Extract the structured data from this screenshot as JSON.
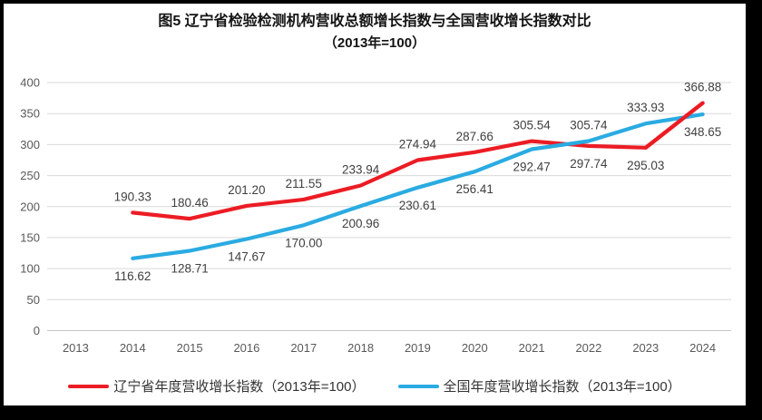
{
  "colors": {
    "grid": "#d9d9d9",
    "axis_line": "#c6c6c6",
    "axis_text": "#595959",
    "data_label": "#404040",
    "frame": "#000000",
    "background": "#ffffff"
  },
  "chart_data": {
    "type": "line",
    "title_line1": "图5  辽宁省检验检测机构营收总额增长指数与全国营收增长指数对比",
    "title_line2": "（2013年=100）",
    "categories": [
      "2013",
      "2014",
      "2015",
      "2016",
      "2017",
      "2018",
      "2019",
      "2020",
      "2021",
      "2022",
      "2023",
      "2024"
    ],
    "yticks": [
      0,
      50,
      100,
      150,
      200,
      250,
      300,
      350,
      400
    ],
    "ylim": [
      0,
      400
    ],
    "grid": true,
    "legend_position": "bottom",
    "series": [
      {
        "name": "辽宁省年度营收增长指数（2013年=100）",
        "color": "#ec1c24",
        "values": [
          null,
          190.33,
          180.46,
          201.2,
          211.55,
          233.94,
          274.94,
          287.66,
          305.54,
          297.74,
          295.03,
          366.88
        ],
        "label_positions": [
          null,
          "above",
          "above",
          "above",
          "above",
          "above",
          "above",
          "above",
          "above",
          "below",
          "below",
          "above"
        ]
      },
      {
        "name": "全国年度营收增长指数（2013年=100）",
        "color": "#2aabe2",
        "values": [
          null,
          116.62,
          128.71,
          147.67,
          170.0,
          200.96,
          230.61,
          256.41,
          292.47,
          305.74,
          333.93,
          348.65
        ],
        "label_positions": [
          null,
          "below",
          "below",
          "below",
          "below",
          "below",
          "below",
          "below",
          "below",
          "above",
          "above",
          "below"
        ]
      }
    ]
  }
}
